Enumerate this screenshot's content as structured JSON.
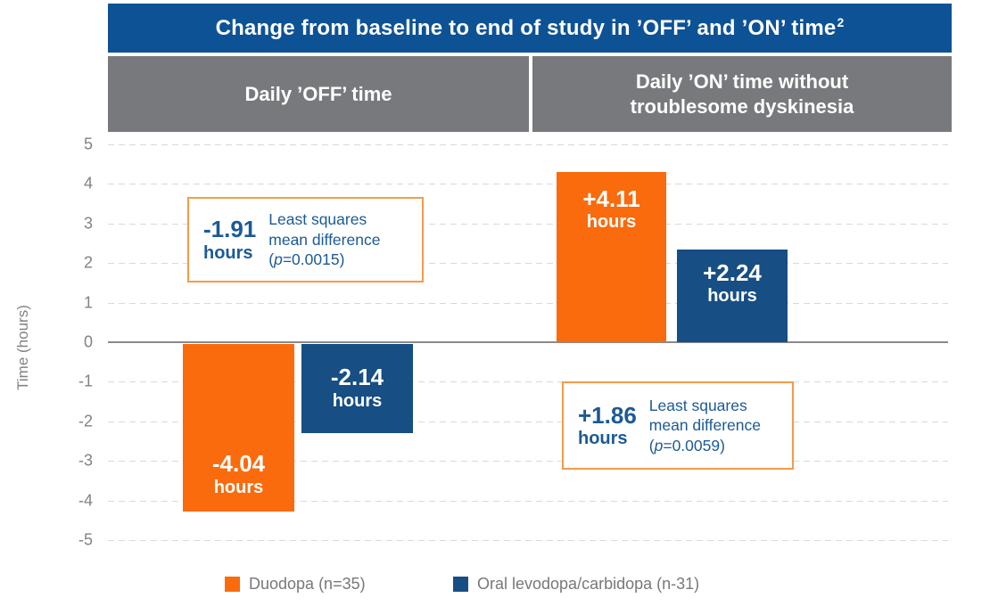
{
  "title": {
    "text": "Change from baseline to end of study in ’OFF’ and ’ON’ time",
    "sup": "2"
  },
  "colors": {
    "title_bar_blue": "#0e5296",
    "header_band_gray": "#78797c",
    "duodopa_orange": "#f96b0c",
    "oral_levodopa_navy": "#174e84",
    "annotation_border_orange": "#f49a4c",
    "annotation_text_blue": "#1c5a96",
    "axis_text_gray": "#808285",
    "gridline_gray": "#d9d9d9"
  },
  "chart_data": {
    "type": "bar",
    "title": "Change from baseline to end of study in ’OFF’ and ’ON’ time²",
    "ylabel": "Time (hours)",
    "ylim": [
      -5,
      5
    ],
    "yticks": [
      5,
      4,
      3,
      2,
      1,
      0,
      -1,
      -2,
      -3,
      -4,
      -5
    ],
    "grid": "horizontal-dashed",
    "legend_position": "bottom",
    "panels": [
      {
        "label": "Daily ’OFF’ time",
        "bars": [
          {
            "series": "Duodopa (n=35)",
            "value": -4.04,
            "display": "-4.04",
            "unit": "hours",
            "color": "#f96b0c"
          },
          {
            "series": "Oral levodopa/carbidopa (n-31)",
            "value": -2.14,
            "display": "-2.14",
            "unit": "hours",
            "color": "#174e84"
          }
        ],
        "annotation": {
          "value": "-1.91",
          "unit": "hours",
          "desc": "Least squares mean difference",
          "p_open": "(",
          "p_sym": "p",
          "p_rest": "=0.0015)"
        }
      },
      {
        "label": "Daily ’ON’ time without troublesome dyskinesia",
        "bars": [
          {
            "series": "Duodopa (n=35)",
            "value": 4.11,
            "display": "+4.11",
            "unit": "hours",
            "color": "#f96b0c"
          },
          {
            "series": "Oral levodopa/carbidopa (n-31)",
            "value": 2.24,
            "display": "+2.24",
            "unit": "hours",
            "color": "#174e84"
          }
        ],
        "annotation": {
          "value": "+1.86",
          "unit": "hours",
          "desc": "Least squares mean difference",
          "p_open": "(",
          "p_sym": "p",
          "p_rest": "=0.0059)"
        }
      }
    ],
    "legend": [
      {
        "label": "Duodopa (n=35)",
        "color": "#f96b0c"
      },
      {
        "label": "Oral levodopa/carbidopa (n-31)",
        "color": "#174e84"
      }
    ]
  }
}
